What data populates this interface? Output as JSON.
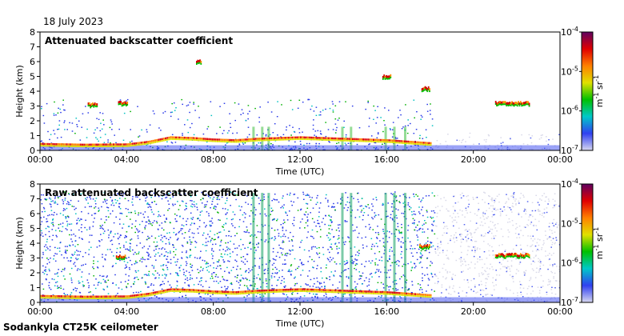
{
  "header": {
    "date": "18 July 2023"
  },
  "footer": {
    "instrument": "Sodankyla CT25K ceilometer"
  },
  "chart_data": [
    {
      "type": "heatmap",
      "title": "Attenuated backscatter coefficient",
      "xlabel": "Time (UTC)",
      "ylabel": "Height (km)",
      "x_ticks": [
        "00:00",
        "04:00",
        "08:00",
        "12:00",
        "16:00",
        "20:00",
        "00:00"
      ],
      "x_range_hours": [
        0,
        24
      ],
      "y_ticks": [
        "0",
        "1",
        "2",
        "3",
        "4",
        "5",
        "6",
        "7",
        "8"
      ],
      "y_range_km": [
        0,
        8
      ],
      "colorbar": {
        "scale": "log",
        "labels": [
          "10-4",
          "10-5",
          "10-6",
          "10-7"
        ],
        "exp_labels": [
          {
            "base": "10",
            "exp": "-4"
          },
          {
            "base": "10",
            "exp": "-5"
          },
          {
            "base": "10",
            "exp": "-6"
          },
          {
            "base": "10",
            "exp": "-7"
          }
        ],
        "unit": "m-1 sr-1",
        "unit_parts": {
          "m": "m",
          "m_exp": "-1",
          "sr": "sr",
          "sr_exp": "-1"
        },
        "range": [
          1e-07,
          0.0001
        ],
        "colors": [
          "#d8d8f0",
          "#3040f0",
          "#00c8c8",
          "#00c000",
          "#e0e000",
          "#ff8000",
          "#e00000",
          "#600060"
        ]
      },
      "features": {
        "boundary_layer": [
          [
            0,
            0.45
          ],
          [
            2,
            0.4
          ],
          [
            4,
            0.42
          ],
          [
            5,
            0.6
          ],
          [
            6,
            0.9
          ],
          [
            7,
            0.85
          ],
          [
            8,
            0.75
          ],
          [
            9,
            0.7
          ],
          [
            10,
            0.8
          ],
          [
            12,
            0.9
          ],
          [
            14,
            0.8
          ],
          [
            16,
            0.7
          ],
          [
            18,
            0.5
          ]
        ],
        "cloud_layers": [
          {
            "start_h": 2.2,
            "end_h": 2.6,
            "height_km": 3.1
          },
          {
            "start_h": 3.6,
            "end_h": 4.0,
            "height_km": 3.2
          },
          {
            "start_h": 7.2,
            "end_h": 7.4,
            "height_km": 6.0
          },
          {
            "start_h": 15.8,
            "end_h": 16.2,
            "height_km": 5.0
          },
          {
            "start_h": 17.6,
            "end_h": 18.0,
            "height_km": 4.2
          },
          {
            "start_h": 21.0,
            "end_h": 22.6,
            "height_km": 3.2
          }
        ]
      }
    },
    {
      "type": "heatmap",
      "title": "Raw attenuated backscatter coefficient",
      "xlabel": "Time (UTC)",
      "ylabel": "Height (km)",
      "x_ticks": [
        "00:00",
        "04:00",
        "08:00",
        "12:00",
        "16:00",
        "20:00",
        "00:00"
      ],
      "x_range_hours": [
        0,
        24
      ],
      "y_ticks": [
        "0",
        "1",
        "2",
        "3",
        "4",
        "5",
        "6",
        "7",
        "8"
      ],
      "y_range_km": [
        0,
        8
      ],
      "colorbar": {
        "scale": "log",
        "labels": [
          "10-4",
          "10-5",
          "10-6",
          "10-7"
        ],
        "exp_labels": [
          {
            "base": "10",
            "exp": "-4"
          },
          {
            "base": "10",
            "exp": "-5"
          },
          {
            "base": "10",
            "exp": "-6"
          },
          {
            "base": "10",
            "exp": "-7"
          }
        ],
        "unit": "m-1 sr-1",
        "unit_parts": {
          "m": "m",
          "m_exp": "-1",
          "sr": "sr",
          "sr_exp": "-1"
        },
        "range": [
          1e-07,
          0.0001
        ],
        "colors": [
          "#d8d8f0",
          "#3040f0",
          "#00c8c8",
          "#00c000",
          "#e0e000",
          "#ff8000",
          "#e00000",
          "#600060"
        ]
      },
      "features": {
        "boundary_layer": [
          [
            0,
            0.45
          ],
          [
            2,
            0.4
          ],
          [
            4,
            0.42
          ],
          [
            5,
            0.6
          ],
          [
            6,
            0.9
          ],
          [
            7,
            0.85
          ],
          [
            8,
            0.75
          ],
          [
            9,
            0.7
          ],
          [
            10,
            0.8
          ],
          [
            12,
            0.9
          ],
          [
            14,
            0.8
          ],
          [
            16,
            0.7
          ],
          [
            18,
            0.5
          ]
        ],
        "cloud_layers": [
          {
            "start_h": 3.5,
            "end_h": 3.9,
            "height_km": 3.1
          },
          {
            "start_h": 17.5,
            "end_h": 18.0,
            "height_km": 3.8
          },
          {
            "start_h": 21.0,
            "end_h": 22.6,
            "height_km": 3.2
          }
        ]
      }
    }
  ]
}
